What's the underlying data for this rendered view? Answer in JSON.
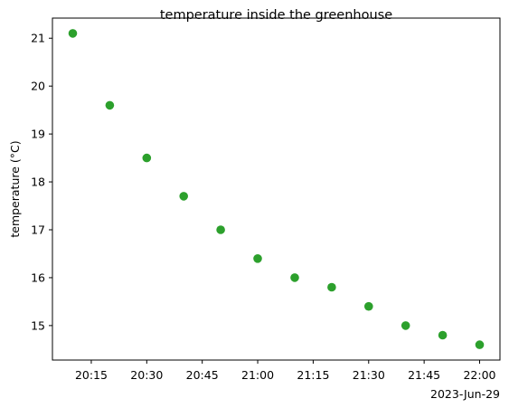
{
  "chart_data": {
    "type": "scatter",
    "title": "temperature inside the greenhouse",
    "xlabel": "",
    "ylabel": "temperature (°C)",
    "date_offset_label": "2023-Jun-29",
    "series": [
      {
        "x": [
          "20:10",
          "20:20",
          "20:30",
          "20:40",
          "20:50",
          "21:00",
          "21:10",
          "21:20",
          "21:30",
          "21:40",
          "21:50",
          "22:00"
        ],
        "y": [
          21.1,
          19.6,
          18.5,
          17.7,
          17.0,
          16.4,
          16.0,
          15.8,
          15.4,
          15.0,
          14.8,
          14.6
        ],
        "color": "#2ca02c"
      }
    ],
    "x_ticks": [
      "20:15",
      "20:30",
      "20:45",
      "21:00",
      "21:15",
      "21:30",
      "21:45",
      "22:00"
    ],
    "y_ticks": [
      15,
      16,
      17,
      18,
      19,
      20,
      21
    ],
    "xlim": [
      "20:04.5",
      "22:05.5"
    ],
    "ylim": [
      14.28,
      21.42
    ],
    "grid": false,
    "legend": "none"
  }
}
